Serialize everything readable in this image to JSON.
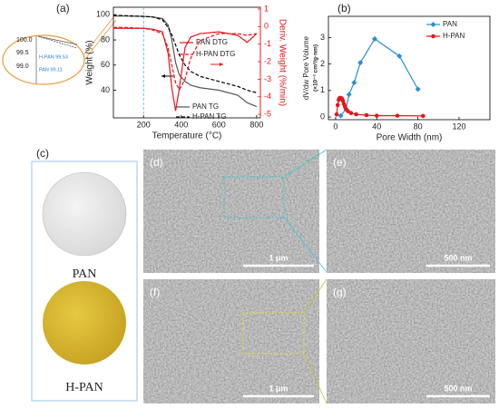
{
  "chart_data": [
    {
      "type": "line",
      "xlabel": "Temperature (°C)",
      "ylabel": "Weight (%)",
      "y2label": "Deriv. Weight (%/min)",
      "x": [
        40,
        100,
        200,
        250,
        300,
        330,
        350,
        370,
        390,
        420,
        450,
        500,
        600,
        700,
        750,
        800
      ],
      "xlim": [
        40,
        820
      ],
      "xticks": [
        200,
        400,
        600,
        800
      ],
      "ylim": [
        18,
        106
      ],
      "yticks": [
        40,
        60,
        80,
        100
      ],
      "y2lim": [
        -5.2,
        1.1
      ],
      "y2ticks": [
        1,
        0,
        -1,
        -2,
        -3,
        -4,
        -5
      ],
      "y2color": "#e8141a",
      "vline": 200,
      "vline_color": "#33bbdd",
      "series": [
        {
          "name": "PAN TG",
          "color": "#555555",
          "style": "solid",
          "values": [
            99.1,
            99,
            98.7,
            98.3,
            97,
            92,
            80,
            62,
            52,
            47,
            44,
            42,
            40,
            36,
            30,
            27
          ]
        },
        {
          "name": "H-PAN TG",
          "color": "#000000",
          "style": "dashed",
          "values": [
            99.5,
            99.3,
            98.8,
            98.2,
            96,
            90,
            84,
            76,
            68,
            60,
            55,
            51,
            47,
            43,
            40,
            38
          ]
        },
        {
          "name": "PAN DTG",
          "color": "#e8141a",
          "style": "solid",
          "axis": "y2",
          "values": [
            -0.1,
            -0.1,
            -0.1,
            -0.15,
            -0.3,
            -1.5,
            -3.5,
            -4.8,
            -3.5,
            -1.2,
            -0.6,
            -0.4,
            -0.3,
            -0.5,
            -0.9,
            -0.4
          ]
        },
        {
          "name": "H-PAN DTG",
          "color": "#e8141a",
          "style": "dashed",
          "axis": "y2",
          "values": [
            -0.05,
            -0.05,
            -0.1,
            -0.2,
            -0.4,
            -1.2,
            -2.2,
            -3.2,
            -3.6,
            -3,
            -1.8,
            -0.8,
            -0.4,
            -0.4,
            -0.5,
            -0.4
          ]
        }
      ]
    },
    {
      "type": "line",
      "xlabel": "Pore Width (nm)",
      "ylabel": "dV/dw Pore Volume",
      "ylabel_unit": "(×10⁻² cm³/g·nm)",
      "xlim": [
        -7,
        150
      ],
      "xticks": [
        0,
        40,
        80,
        120
      ],
      "ylim": [
        -0.1,
        3.8
      ],
      "yticks": [
        0,
        1,
        2,
        3
      ],
      "legend": "upper right",
      "series": [
        {
          "name": "PAN",
          "color": "#2a8fd0",
          "marker": "diamond",
          "x": [
            5,
            10,
            13,
            18,
            24,
            38,
            62,
            80
          ],
          "values": [
            0.05,
            0.3,
            0.85,
            1.3,
            2.05,
            2.95,
            2.3,
            1.05
          ]
        },
        {
          "name": "H-PAN",
          "color": "#e8141a",
          "marker": "circle",
          "x": [
            1,
            2,
            3,
            4,
            5,
            6,
            7,
            8,
            9,
            10,
            12,
            15,
            20,
            30,
            40,
            60,
            85
          ],
          "values": [
            0.1,
            0.45,
            0.65,
            0.72,
            0.72,
            0.7,
            0.62,
            0.5,
            0.4,
            0.3,
            0.22,
            0.15,
            0.1,
            0.07,
            0.05,
            0.05,
            0.04
          ]
        }
      ]
    }
  ],
  "panels": {
    "labels": [
      "(a)",
      "(b)",
      "(c)",
      "(d)",
      "(e)",
      "(f)",
      "(g)"
    ],
    "photos": [
      "PAN",
      "H-PAN"
    ],
    "scale_bars": [
      "1 μm",
      "500 nm",
      "1 μm",
      "500 nm"
    ],
    "inset": {
      "ticks": [
        "100.0",
        "99.5",
        "99.0"
      ],
      "labels": [
        "H-PAN 99.53",
        "PAN 99.11"
      ]
    }
  }
}
